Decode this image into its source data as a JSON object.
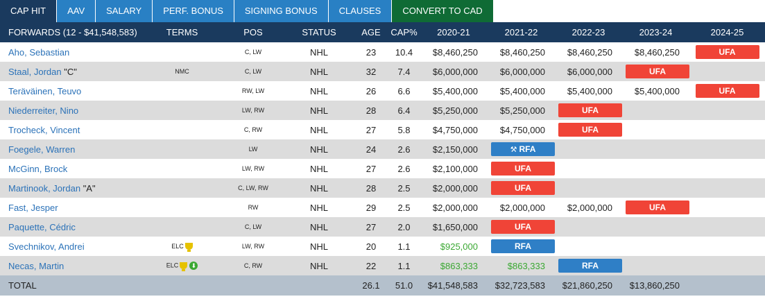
{
  "tabs": [
    {
      "label": "CAP HIT",
      "active": true
    },
    {
      "label": "AAV"
    },
    {
      "label": "SALARY"
    },
    {
      "label": "PERF. BONUS"
    },
    {
      "label": "SIGNING BONUS"
    },
    {
      "label": "CLAUSES"
    },
    {
      "label": "CONVERT TO CAD"
    }
  ],
  "table": {
    "headers": [
      "FORWARDS (12 - $41,548,583)",
      "TERMS",
      "POS",
      "STATUS",
      "AGE",
      "CAP%",
      "2020-21",
      "2021-22",
      "2022-23",
      "2023-24",
      "2024-25"
    ],
    "rows": [
      {
        "name": "Aho, Sebastian",
        "role": "",
        "terms": "",
        "pos": "C, LW",
        "status": "NHL",
        "age": "23",
        "cap": "10.4",
        "years": [
          {
            "v": "$8,460,250"
          },
          {
            "v": "$8,460,250"
          },
          {
            "v": "$8,460,250"
          },
          {
            "v": "$8,460,250"
          },
          {
            "badge": "UFA"
          }
        ]
      },
      {
        "name": "Staal, Jordan",
        "role": "\"C\"",
        "terms": "NMC",
        "pos": "C, LW",
        "status": "NHL",
        "age": "32",
        "cap": "7.4",
        "years": [
          {
            "v": "$6,000,000"
          },
          {
            "v": "$6,000,000"
          },
          {
            "v": "$6,000,000"
          },
          {
            "badge": "UFA"
          },
          {}
        ]
      },
      {
        "name": "Teräväinen, Teuvo",
        "role": "",
        "terms": "",
        "pos": "RW, LW",
        "status": "NHL",
        "age": "26",
        "cap": "6.6",
        "years": [
          {
            "v": "$5,400,000"
          },
          {
            "v": "$5,400,000"
          },
          {
            "v": "$5,400,000"
          },
          {
            "v": "$5,400,000"
          },
          {
            "badge": "UFA"
          }
        ]
      },
      {
        "name": "Niederreiter, Nino",
        "role": "",
        "terms": "",
        "pos": "LW, RW",
        "status": "NHL",
        "age": "28",
        "cap": "6.4",
        "years": [
          {
            "v": "$5,250,000"
          },
          {
            "v": "$5,250,000"
          },
          {
            "badge": "UFA"
          },
          {},
          {}
        ]
      },
      {
        "name": "Trocheck, Vincent",
        "role": "",
        "terms": "",
        "pos": "C, RW",
        "status": "NHL",
        "age": "27",
        "cap": "5.8",
        "years": [
          {
            "v": "$4,750,000"
          },
          {
            "v": "$4,750,000"
          },
          {
            "badge": "UFA"
          },
          {},
          {}
        ]
      },
      {
        "name": "Foegele, Warren",
        "role": "",
        "terms": "",
        "pos": "LW",
        "status": "NHL",
        "age": "24",
        "cap": "2.6",
        "years": [
          {
            "v": "$2,150,000"
          },
          {
            "badge": "RFA",
            "arb": true
          },
          {},
          {},
          {}
        ]
      },
      {
        "name": "McGinn, Brock",
        "role": "",
        "terms": "",
        "pos": "LW, RW",
        "status": "NHL",
        "age": "27",
        "cap": "2.6",
        "years": [
          {
            "v": "$2,100,000"
          },
          {
            "badge": "UFA"
          },
          {},
          {},
          {}
        ]
      },
      {
        "name": "Martinook, Jordan",
        "role": "\"A\"",
        "terms": "",
        "pos": "C, LW, RW",
        "status": "NHL",
        "age": "28",
        "cap": "2.5",
        "years": [
          {
            "v": "$2,000,000"
          },
          {
            "badge": "UFA"
          },
          {},
          {},
          {}
        ]
      },
      {
        "name": "Fast, Jesper",
        "role": "",
        "terms": "",
        "pos": "RW",
        "status": "NHL",
        "age": "29",
        "cap": "2.5",
        "years": [
          {
            "v": "$2,000,000"
          },
          {
            "v": "$2,000,000"
          },
          {
            "v": "$2,000,000"
          },
          {
            "badge": "UFA"
          },
          {}
        ]
      },
      {
        "name": "Paquette, Cédric",
        "role": "",
        "terms": "",
        "pos": "C, LW",
        "status": "NHL",
        "age": "27",
        "cap": "2.0",
        "years": [
          {
            "v": "$1,650,000"
          },
          {
            "badge": "UFA"
          },
          {},
          {},
          {}
        ]
      },
      {
        "name": "Svechnikov, Andrei",
        "role": "",
        "terms": "ELC",
        "trophy": true,
        "pos": "LW, RW",
        "status": "NHL",
        "age": "20",
        "cap": "1.1",
        "years": [
          {
            "v": "$925,000",
            "green": true
          },
          {
            "badge": "RFA"
          },
          {},
          {},
          {}
        ]
      },
      {
        "name": "Necas, Martin",
        "role": "",
        "terms": "ELC",
        "trophy": true,
        "download": true,
        "pos": "C, RW",
        "status": "NHL",
        "age": "22",
        "cap": "1.1",
        "years": [
          {
            "v": "$863,333",
            "green": true
          },
          {
            "v": "$863,333",
            "green": true
          },
          {
            "badge": "RFA"
          },
          {},
          {}
        ]
      }
    ],
    "total": {
      "label": "TOTAL",
      "age": "26.1",
      "cap": "51.0",
      "years": [
        "$41,548,583",
        "$32,723,583",
        "$21,860,250",
        "$13,860,250",
        ""
      ]
    }
  },
  "colors": {
    "header_bg": "#1a3a5e",
    "tab_bg": "#2980c4",
    "cad_tab_bg": "#0f6b35",
    "ufa": "#f04437",
    "rfa": "#2f7fc6",
    "elc_green": "#3aa832",
    "link": "#2b72b8"
  },
  "icons": {
    "arbitration": "gavel-icon",
    "elc": "trophy-icon",
    "download": "download-icon"
  }
}
